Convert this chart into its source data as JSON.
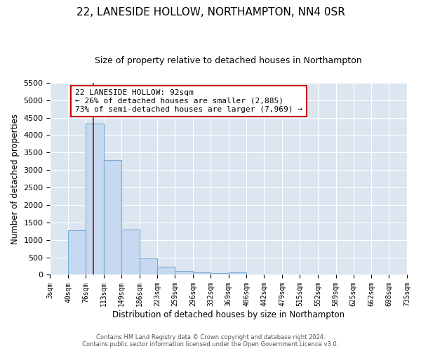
{
  "title": "22, LANESIDE HOLLOW, NORTHAMPTON, NN4 0SR",
  "subtitle": "Size of property relative to detached houses in Northampton",
  "xlabel": "Distribution of detached houses by size in Northampton",
  "ylabel": "Number of detached properties",
  "bin_edges": [
    3,
    40,
    76,
    113,
    149,
    186,
    223,
    259,
    296,
    332,
    369,
    406,
    442,
    479,
    515,
    552,
    589,
    625,
    662,
    698,
    735
  ],
  "bar_heights": [
    0,
    1270,
    4320,
    3290,
    1290,
    480,
    240,
    100,
    70,
    50,
    60,
    0,
    0,
    0,
    0,
    0,
    0,
    0,
    0,
    0
  ],
  "bar_color": "#c6d9f0",
  "bar_edge_color": "#7aadd4",
  "property_size": 92,
  "red_line_color": "#cc0000",
  "ylim": [
    0,
    5500
  ],
  "yticks": [
    0,
    500,
    1000,
    1500,
    2000,
    2500,
    3000,
    3500,
    4000,
    4500,
    5000,
    5500
  ],
  "annotation_text": "22 LANESIDE HOLLOW: 92sqm\n← 26% of detached houses are smaller (2,885)\n73% of semi-detached houses are larger (7,969) →",
  "annotation_box_color": "#ffffff",
  "annotation_border_color": "#cc0000",
  "footer_line1": "Contains HM Land Registry data © Crown copyright and database right 2024.",
  "footer_line2": "Contains public sector information licensed under the Open Government Licence v3.0.",
  "fig_bg_color": "#ffffff",
  "plot_bg_color": "#dce6f0",
  "grid_color": "#ffffff",
  "title_fontsize": 11,
  "subtitle_fontsize": 9
}
